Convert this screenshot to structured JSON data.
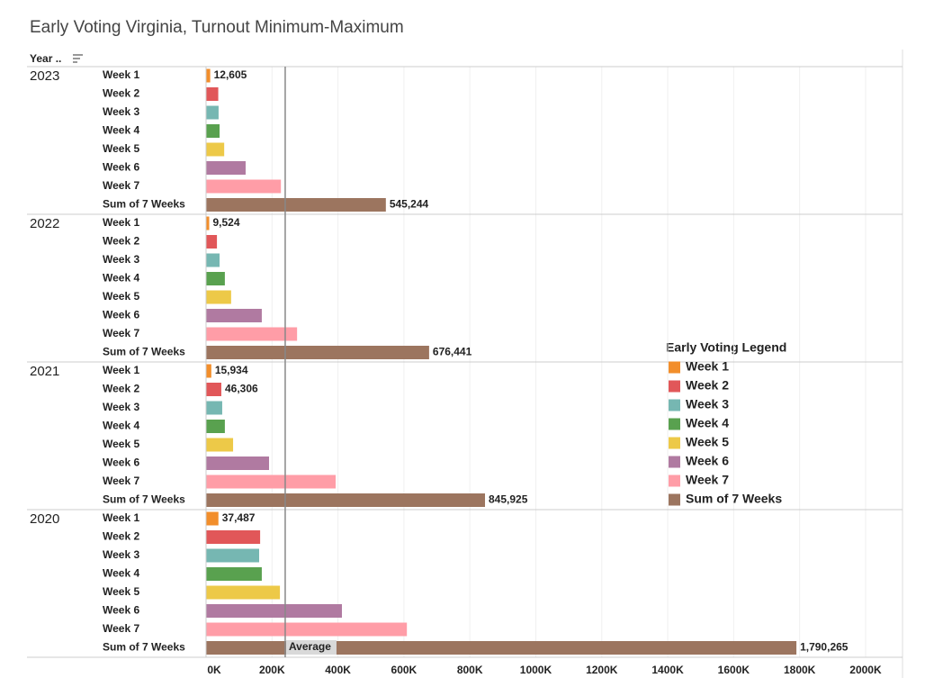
{
  "chart_data": {
    "type": "grouped-hbar",
    "title": "Early Voting Virginia, Turnout Minimum-Maximum",
    "group_header": "Year ..",
    "legend_title": "Early Voting Legend",
    "categories": [
      "2023",
      "2022",
      "2021",
      "2020"
    ],
    "series": [
      {
        "name": "Week 1",
        "color": "#f28e2b",
        "values": [
          12605,
          9524,
          15934,
          37487
        ],
        "value_labels": [
          "12,605",
          "9,524",
          "15,934",
          "37,487"
        ]
      },
      {
        "name": "Week 2",
        "color": "#e15759",
        "values": [
          37000,
          33000,
          46306,
          164000
        ],
        "value_labels": [
          null,
          null,
          "46,306",
          null
        ]
      },
      {
        "name": "Week 3",
        "color": "#76b7b2",
        "values": [
          38000,
          41000,
          49000,
          161000
        ]
      },
      {
        "name": "Week 4",
        "color": "#59a14f",
        "values": [
          41000,
          57000,
          57000,
          169000
        ]
      },
      {
        "name": "Week 5",
        "color": "#edc948",
        "values": [
          55000,
          76000,
          82000,
          224000
        ]
      },
      {
        "name": "Week 6",
        "color": "#b07aa1",
        "values": [
          120000,
          169000,
          191000,
          412000
        ]
      },
      {
        "name": "Week 7",
        "color": "#ff9da7",
        "values": [
          227000,
          276000,
          393000,
          609000
        ]
      },
      {
        "name": "Sum of 7 Weeks",
        "color": "#9c755f",
        "values": [
          545244,
          676441,
          845925,
          1790265
        ],
        "value_labels": [
          "545,244",
          "676,441",
          "845,925",
          "1,790,265"
        ]
      }
    ],
    "reference_line": {
      "label": "Average",
      "value": 240000
    },
    "xlim": [
      0,
      2112000
    ],
    "xticks": [
      {
        "value": 0,
        "label": "0K"
      },
      {
        "value": 200000,
        "label": "200K"
      },
      {
        "value": 400000,
        "label": "400K"
      },
      {
        "value": 600000,
        "label": "600K"
      },
      {
        "value": 800000,
        "label": "800K"
      },
      {
        "value": 1000000,
        "label": "1000K"
      },
      {
        "value": 1200000,
        "label": "1200K"
      },
      {
        "value": 1400000,
        "label": "1400K"
      },
      {
        "value": 1600000,
        "label": "1600K"
      },
      {
        "value": 1800000,
        "label": "1800K"
      },
      {
        "value": 2000000,
        "label": "2000K"
      }
    ],
    "grid": true
  }
}
